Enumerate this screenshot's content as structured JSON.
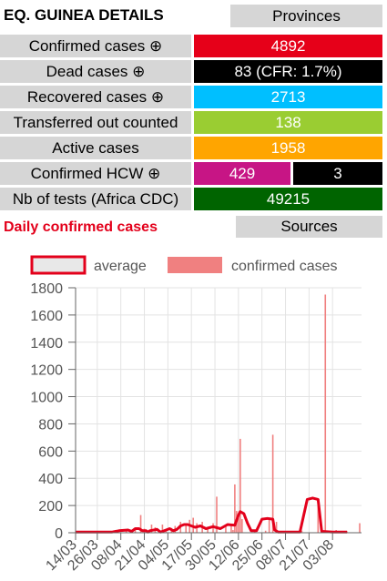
{
  "header": {
    "title": "EQ. GUINEA DETAILS",
    "provinces_label": "Provinces"
  },
  "stats": [
    {
      "label": "Confirmed cases ⊕",
      "value": "4892",
      "color": "#e60019"
    },
    {
      "label": "Dead cases ⊕",
      "value": "83 (CFR: 1.7%)",
      "color": "#000000"
    },
    {
      "label": "Recovered cases ⊕",
      "value": "2713",
      "color": "#00bfff"
    },
    {
      "label": "Transferred out counted",
      "value": "138",
      "color": "#9acd32"
    },
    {
      "label": "Active cases",
      "value": "1958",
      "color": "#ffa500"
    }
  ],
  "hcw": {
    "label": "Confirmed HCW ⊕",
    "value1": "429",
    "value1_color": "#c71585",
    "value2": "3",
    "value2_color": "#000000"
  },
  "tests": {
    "label": "Nb of tests (Africa CDC)",
    "value": "49215",
    "color": "#006400"
  },
  "daily": {
    "title": "Daily confirmed cases",
    "sources_label": "Sources"
  },
  "chart_data": {
    "type": "bar",
    "legend": [
      {
        "name": "average",
        "style": "line",
        "color": "#e3001b"
      },
      {
        "name": "confirmed cases",
        "style": "bar",
        "color": "#f08080"
      }
    ],
    "legend_position": "top",
    "x_tick_labels": [
      "14/03",
      "26/03",
      "08/04",
      "21/04",
      "04/05",
      "17/05",
      "30/05",
      "12/06",
      "25/06",
      "08/07",
      "21/07",
      "03/08"
    ],
    "x_range_days": [
      0,
      158
    ],
    "x_tick_positions_days": [
      0,
      12,
      25,
      38,
      51,
      64,
      77,
      90,
      103,
      116,
      129,
      142
    ],
    "ylim": [
      0,
      1800
    ],
    "yticks": [
      0,
      200,
      400,
      600,
      800,
      1000,
      1200,
      1400,
      1600,
      1800
    ],
    "grid": true,
    "confirmed_cases": [
      [
        10,
        5
      ],
      [
        20,
        8
      ],
      [
        28,
        25
      ],
      [
        33,
        20
      ],
      [
        36,
        130
      ],
      [
        38,
        30
      ],
      [
        42,
        60
      ],
      [
        44,
        40
      ],
      [
        48,
        60
      ],
      [
        50,
        20
      ],
      [
        53,
        35
      ],
      [
        55,
        50
      ],
      [
        58,
        80
      ],
      [
        61,
        50
      ],
      [
        63,
        95
      ],
      [
        65,
        110
      ],
      [
        67,
        70
      ],
      [
        70,
        80
      ],
      [
        73,
        40
      ],
      [
        76,
        70
      ],
      [
        78,
        265
      ],
      [
        83,
        60
      ],
      [
        86,
        50
      ],
      [
        87,
        20
      ],
      [
        88,
        355
      ],
      [
        89,
        160
      ],
      [
        90,
        110
      ],
      [
        91,
        690
      ],
      [
        92,
        100
      ],
      [
        99,
        10
      ],
      [
        105,
        15
      ],
      [
        107,
        110
      ],
      [
        109,
        720
      ],
      [
        111,
        80
      ],
      [
        125,
        15
      ],
      [
        134,
        230
      ],
      [
        138,
        1750
      ],
      [
        144,
        20
      ],
      [
        150,
        10
      ],
      [
        157,
        70
      ]
    ],
    "average": [
      [
        0,
        5
      ],
      [
        20,
        5
      ],
      [
        24,
        15
      ],
      [
        29,
        20
      ],
      [
        31,
        10
      ],
      [
        33,
        30
      ],
      [
        35,
        30
      ],
      [
        37,
        15
      ],
      [
        39,
        15
      ],
      [
        40,
        5
      ],
      [
        41,
        15
      ],
      [
        45,
        25
      ],
      [
        47,
        5
      ],
      [
        50,
        20
      ],
      [
        52,
        30
      ],
      [
        54,
        15
      ],
      [
        56,
        25
      ],
      [
        58,
        50
      ],
      [
        60,
        60
      ],
      [
        62,
        60
      ],
      [
        64,
        50
      ],
      [
        66,
        40
      ],
      [
        69,
        50
      ],
      [
        72,
        30
      ],
      [
        76,
        45
      ],
      [
        80,
        30
      ],
      [
        84,
        60
      ],
      [
        88,
        55
      ],
      [
        90,
        130
      ],
      [
        91,
        155
      ],
      [
        93,
        140
      ],
      [
        95,
        70
      ],
      [
        97,
        15
      ],
      [
        100,
        15
      ],
      [
        103,
        100
      ],
      [
        106,
        105
      ],
      [
        109,
        100
      ],
      [
        110,
        20
      ],
      [
        112,
        5
      ],
      [
        124,
        5
      ],
      [
        128,
        245
      ],
      [
        131,
        255
      ],
      [
        134,
        245
      ],
      [
        136,
        10
      ],
      [
        142,
        5
      ],
      [
        150,
        5
      ]
    ]
  }
}
